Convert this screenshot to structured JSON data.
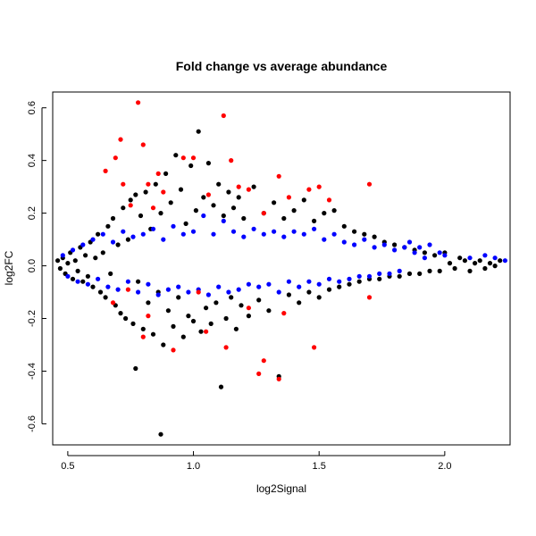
{
  "chart_data": {
    "type": "scatter",
    "title": "Fold change vs average abundance",
    "xlabel": "log2Signal",
    "ylabel": "log2FC",
    "xlim": [
      0.44,
      2.26
    ],
    "ylim": [
      -0.68,
      0.66
    ],
    "x_ticks": [
      0.5,
      1.0,
      1.5,
      2.0
    ],
    "x_tick_labels": [
      "0.5",
      "1.0",
      "1.5",
      "2.0"
    ],
    "y_ticks": [
      -0.6,
      -0.4,
      -0.2,
      0.0,
      0.2,
      0.4,
      0.6
    ],
    "y_tick_labels": [
      "-0.6",
      "-0.4",
      "-0.2",
      "0.0",
      "0.2",
      "0.4",
      "0.6"
    ],
    "grid": false,
    "legend": "none",
    "series": [
      {
        "color": "#000000",
        "points": [
          [
            0.46,
            0.02
          ],
          [
            0.47,
            -0.01
          ],
          [
            0.48,
            0.03
          ],
          [
            0.49,
            -0.03
          ],
          [
            0.5,
            0.01
          ],
          [
            0.51,
            0.05
          ],
          [
            0.52,
            -0.05
          ],
          [
            0.53,
            0.02
          ],
          [
            0.54,
            -0.02
          ],
          [
            0.55,
            0.07
          ],
          [
            0.56,
            -0.06
          ],
          [
            0.57,
            0.04
          ],
          [
            0.58,
            -0.04
          ],
          [
            0.59,
            0.09
          ],
          [
            0.6,
            -0.08
          ],
          [
            0.61,
            0.03
          ],
          [
            0.62,
            0.12
          ],
          [
            0.63,
            -0.1
          ],
          [
            0.64,
            0.05
          ],
          [
            0.65,
            -0.12
          ],
          [
            0.66,
            0.15
          ],
          [
            0.67,
            -0.03
          ],
          [
            0.68,
            0.18
          ],
          [
            0.69,
            -0.15
          ],
          [
            0.7,
            0.08
          ],
          [
            0.71,
            -0.18
          ],
          [
            0.72,
            0.22
          ],
          [
            0.73,
            -0.2
          ],
          [
            0.74,
            0.1
          ],
          [
            0.75,
            0.25
          ],
          [
            0.76,
            -0.22
          ],
          [
            0.77,
            0.27
          ],
          [
            0.78,
            -0.06
          ],
          [
            0.79,
            0.19
          ],
          [
            0.8,
            -0.24
          ],
          [
            0.81,
            0.28
          ],
          [
            0.82,
            -0.14
          ],
          [
            0.83,
            0.14
          ],
          [
            0.84,
            -0.26
          ],
          [
            0.85,
            0.31
          ],
          [
            0.86,
            -0.1
          ],
          [
            0.87,
            0.2
          ],
          [
            0.88,
            -0.3
          ],
          [
            0.89,
            0.35
          ],
          [
            0.9,
            -0.17
          ],
          [
            0.91,
            0.24
          ],
          [
            0.92,
            -0.23
          ],
          [
            0.93,
            0.42
          ],
          [
            0.94,
            -0.12
          ],
          [
            0.95,
            0.29
          ],
          [
            0.96,
            -0.27
          ],
          [
            0.97,
            0.16
          ],
          [
            0.98,
            -0.19
          ],
          [
            0.99,
            0.38
          ],
          [
            1.0,
            -0.21
          ],
          [
            1.01,
            0.21
          ],
          [
            1.02,
            0.51
          ],
          [
            1.03,
            -0.25
          ],
          [
            1.04,
            0.26
          ],
          [
            1.05,
            -0.16
          ],
          [
            1.06,
            0.39
          ],
          [
            1.07,
            -0.22
          ],
          [
            1.08,
            0.23
          ],
          [
            1.09,
            -0.14
          ],
          [
            1.1,
            0.31
          ],
          [
            1.11,
            -0.46
          ],
          [
            1.12,
            0.19
          ],
          [
            1.13,
            -0.2
          ],
          [
            1.14,
            0.28
          ],
          [
            1.15,
            -0.12
          ],
          [
            1.16,
            0.22
          ],
          [
            1.17,
            -0.24
          ],
          [
            1.18,
            0.26
          ],
          [
            1.19,
            -0.15
          ],
          [
            1.2,
            0.18
          ],
          [
            1.22,
            -0.19
          ],
          [
            1.24,
            0.3
          ],
          [
            1.26,
            -0.13
          ],
          [
            1.28,
            0.2
          ],
          [
            1.3,
            -0.17
          ],
          [
            1.32,
            0.24
          ],
          [
            1.34,
            -0.42
          ],
          [
            1.36,
            0.18
          ],
          [
            1.38,
            -0.11
          ],
          [
            1.4,
            0.21
          ],
          [
            1.42,
            -0.14
          ],
          [
            1.44,
            0.25
          ],
          [
            1.46,
            -0.1
          ],
          [
            1.48,
            0.17
          ],
          [
            1.5,
            -0.12
          ],
          [
            1.52,
            0.2
          ],
          [
            1.54,
            -0.09
          ],
          [
            1.56,
            0.21
          ],
          [
            1.58,
            -0.08
          ],
          [
            1.6,
            0.15
          ],
          [
            1.62,
            -0.07
          ],
          [
            1.64,
            0.13
          ],
          [
            1.66,
            -0.06
          ],
          [
            1.68,
            0.12
          ],
          [
            1.7,
            -0.05
          ],
          [
            1.72,
            0.11
          ],
          [
            1.74,
            -0.05
          ],
          [
            1.76,
            0.09
          ],
          [
            1.78,
            -0.04
          ],
          [
            1.8,
            0.08
          ],
          [
            1.82,
            -0.04
          ],
          [
            1.84,
            0.07
          ],
          [
            1.86,
            -0.03
          ],
          [
            1.88,
            0.06
          ],
          [
            1.9,
            -0.03
          ],
          [
            1.92,
            0.05
          ],
          [
            1.94,
            -0.02
          ],
          [
            1.96,
            0.04
          ],
          [
            1.98,
            -0.02
          ],
          [
            2.0,
            0.05
          ],
          [
            2.02,
            0.01
          ],
          [
            2.04,
            -0.01
          ],
          [
            2.06,
            0.03
          ],
          [
            2.08,
            0.02
          ],
          [
            2.1,
            -0.02
          ],
          [
            2.12,
            0.01
          ],
          [
            2.14,
            0.02
          ],
          [
            2.16,
            -0.01
          ],
          [
            2.18,
            0.01
          ],
          [
            2.2,
            0.0
          ],
          [
            2.22,
            0.02
          ],
          [
            0.77,
            -0.39
          ],
          [
            0.87,
            -0.64
          ]
        ]
      },
      {
        "color": "#0000ff",
        "points": [
          [
            0.48,
            0.04
          ],
          [
            0.5,
            -0.04
          ],
          [
            0.52,
            0.06
          ],
          [
            0.54,
            -0.06
          ],
          [
            0.56,
            0.08
          ],
          [
            0.58,
            -0.07
          ],
          [
            0.6,
            0.1
          ],
          [
            0.62,
            -0.05
          ],
          [
            0.64,
            0.12
          ],
          [
            0.66,
            -0.08
          ],
          [
            0.68,
            0.09
          ],
          [
            0.7,
            -0.09
          ],
          [
            0.72,
            0.13
          ],
          [
            0.74,
            -0.06
          ],
          [
            0.76,
            0.11
          ],
          [
            0.78,
            -0.1
          ],
          [
            0.8,
            0.12
          ],
          [
            0.82,
            -0.07
          ],
          [
            0.84,
            0.14
          ],
          [
            0.86,
            -0.11
          ],
          [
            0.88,
            0.1
          ],
          [
            0.9,
            -0.09
          ],
          [
            0.92,
            0.15
          ],
          [
            0.94,
            -0.08
          ],
          [
            0.96,
            0.12
          ],
          [
            0.98,
            -0.1
          ],
          [
            1.0,
            0.13
          ],
          [
            1.02,
            -0.09
          ],
          [
            1.04,
            0.19
          ],
          [
            1.06,
            -0.11
          ],
          [
            1.08,
            0.12
          ],
          [
            1.1,
            -0.08
          ],
          [
            1.12,
            0.17
          ],
          [
            1.14,
            -0.1
          ],
          [
            1.16,
            0.13
          ],
          [
            1.18,
            -0.09
          ],
          [
            1.2,
            0.11
          ],
          [
            1.22,
            -0.07
          ],
          [
            1.24,
            0.14
          ],
          [
            1.26,
            -0.08
          ],
          [
            1.28,
            0.12
          ],
          [
            1.3,
            -0.07
          ],
          [
            1.32,
            0.13
          ],
          [
            1.34,
            -0.1
          ],
          [
            1.36,
            0.11
          ],
          [
            1.38,
            -0.06
          ],
          [
            1.4,
            0.13
          ],
          [
            1.42,
            -0.08
          ],
          [
            1.44,
            0.12
          ],
          [
            1.46,
            -0.06
          ],
          [
            1.48,
            0.14
          ],
          [
            1.5,
            -0.07
          ],
          [
            1.52,
            0.1
          ],
          [
            1.54,
            -0.05
          ],
          [
            1.56,
            0.12
          ],
          [
            1.58,
            -0.06
          ],
          [
            1.6,
            0.09
          ],
          [
            1.62,
            -0.05
          ],
          [
            1.64,
            0.08
          ],
          [
            1.66,
            -0.04
          ],
          [
            1.68,
            0.1
          ],
          [
            1.7,
            -0.04
          ],
          [
            1.72,
            0.07
          ],
          [
            1.74,
            -0.03
          ],
          [
            1.76,
            0.08
          ],
          [
            1.78,
            -0.03
          ],
          [
            1.8,
            0.06
          ],
          [
            1.82,
            -0.02
          ],
          [
            1.84,
            0.07
          ],
          [
            1.86,
            0.09
          ],
          [
            1.88,
            0.05
          ],
          [
            1.9,
            0.07
          ],
          [
            1.92,
            0.03
          ],
          [
            1.94,
            0.08
          ],
          [
            1.98,
            0.05
          ],
          [
            2.0,
            0.04
          ],
          [
            2.1,
            0.03
          ],
          [
            2.16,
            0.04
          ],
          [
            2.2,
            0.03
          ],
          [
            2.24,
            0.02
          ]
        ]
      },
      {
        "color": "#ff0000",
        "points": [
          [
            0.65,
            0.36
          ],
          [
            0.69,
            0.41
          ],
          [
            0.71,
            0.48
          ],
          [
            0.72,
            0.31
          ],
          [
            0.75,
            0.23
          ],
          [
            0.78,
            0.62
          ],
          [
            0.8,
            0.46
          ],
          [
            0.82,
            0.31
          ],
          [
            0.84,
            0.22
          ],
          [
            0.86,
            0.35
          ],
          [
            0.88,
            0.28
          ],
          [
            0.96,
            0.41
          ],
          [
            1.0,
            0.41
          ],
          [
            1.06,
            0.27
          ],
          [
            1.12,
            0.57
          ],
          [
            1.15,
            0.4
          ],
          [
            1.18,
            0.3
          ],
          [
            1.22,
            0.29
          ],
          [
            1.28,
            0.2
          ],
          [
            1.34,
            0.34
          ],
          [
            1.38,
            0.26
          ],
          [
            1.46,
            0.29
          ],
          [
            1.5,
            0.3
          ],
          [
            1.54,
            0.25
          ],
          [
            1.7,
            0.31
          ],
          [
            0.68,
            -0.14
          ],
          [
            0.74,
            -0.09
          ],
          [
            0.8,
            -0.27
          ],
          [
            0.82,
            -0.19
          ],
          [
            0.92,
            -0.32
          ],
          [
            1.02,
            -0.1
          ],
          [
            1.05,
            -0.25
          ],
          [
            1.13,
            -0.31
          ],
          [
            1.22,
            -0.16
          ],
          [
            1.26,
            -0.41
          ],
          [
            1.28,
            -0.36
          ],
          [
            1.34,
            -0.43
          ],
          [
            1.36,
            -0.18
          ],
          [
            1.48,
            -0.31
          ],
          [
            1.7,
            -0.12
          ]
        ]
      }
    ]
  }
}
